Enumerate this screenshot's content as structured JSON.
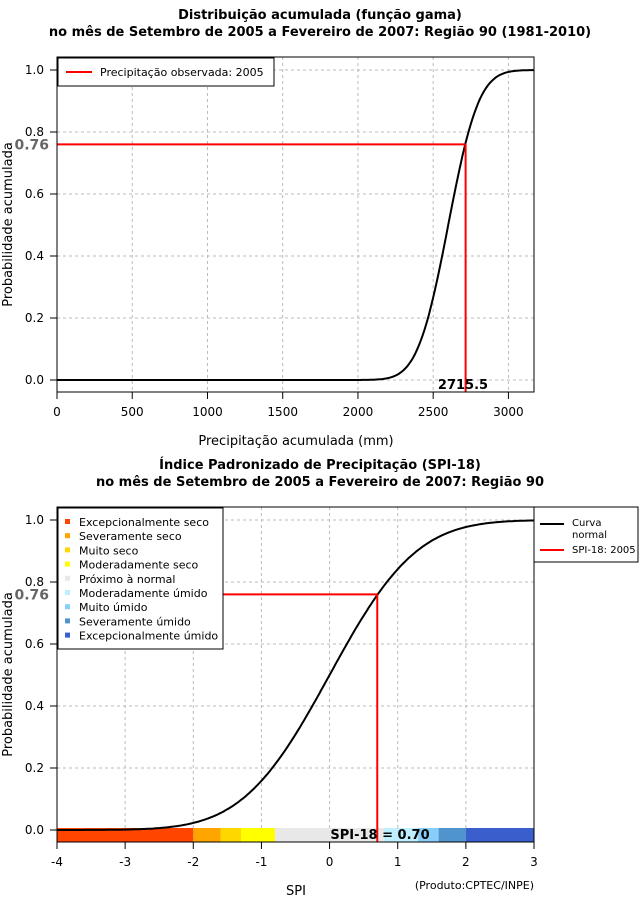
{
  "chart_data": [
    {
      "type": "line",
      "title": "Distribuição acumulada (função gama)",
      "subtitle": "no mês de Setembro de 2005 a Fevereiro de 2007: Região 90 (1981-2010)",
      "xlabel": "Precipitação acumulada (mm)",
      "ylabel": "Probabilidade acumulada",
      "xlim": [
        0,
        3170
      ],
      "ylim": [
        0,
        1
      ],
      "xticks": [
        "0",
        "500",
        "1000",
        "1500",
        "2000",
        "2500",
        "3000"
      ],
      "yticks": [
        "0.0",
        "0.2",
        "0.4",
        "0.6",
        "0.8",
        "1.0"
      ],
      "grid": true,
      "legend": {
        "position": "top-left",
        "entries": [
          "Precipitação observada: 2005"
        ]
      },
      "curve": {
        "distribution": "gamma-like",
        "median": 2600,
        "spread": 160
      },
      "marker": {
        "x": 2715.5,
        "y": 0.76,
        "x_label": "2715.5",
        "y_label": "0.76"
      },
      "colors": {
        "curve": "#000000",
        "marker": "#ff0000"
      }
    },
    {
      "type": "line",
      "title": "Índice Padronizado de Precipitação (SPI-18)",
      "subtitle": "no mês de Setembro de 2005 a Fevereiro de 2007: Região 90",
      "xlabel": "SPI",
      "ylabel": "Probabilidade acumulada",
      "xlim": [
        -4,
        3
      ],
      "ylim": [
        0,
        1
      ],
      "xticks": [
        "-4",
        "-3",
        "-2",
        "-1",
        "0",
        "1",
        "2",
        "3"
      ],
      "yticks": [
        "0.0",
        "0.2",
        "0.4",
        "0.6",
        "0.8",
        "1.0"
      ],
      "grid": true,
      "legend": {
        "position": "top-right",
        "entries": [
          "Curva normal",
          "SPI-18: 2005"
        ]
      },
      "categories": [
        {
          "label": "Excepcionalmente seco",
          "range": [
            -4,
            -2
          ],
          "color": "#ff4500"
        },
        {
          "label": "Severamente seco",
          "range": [
            -2,
            -1.6
          ],
          "color": "#ffa500"
        },
        {
          "label": "Muito seco",
          "range": [
            -1.6,
            -1.3
          ],
          "color": "#ffd700"
        },
        {
          "label": "Moderadamente seco",
          "range": [
            -1.3,
            -0.8
          ],
          "color": "#ffff00"
        },
        {
          "label": "Próximo à normal",
          "range": [
            -0.8,
            0.8
          ],
          "color": "#e8e8e8"
        },
        {
          "label": "Moderadamente úmido",
          "range": [
            0.8,
            1.3
          ],
          "color": "#bfefff"
        },
        {
          "label": "Muito úmido",
          "range": [
            1.3,
            1.6
          ],
          "color": "#87cefa"
        },
        {
          "label": "Severamente úmido",
          "range": [
            1.6,
            2
          ],
          "color": "#4f94cd"
        },
        {
          "label": "Excepcionalmente úmido",
          "range": [
            2,
            3
          ],
          "color": "#3a5fcd"
        }
      ],
      "marker": {
        "x": 0.7,
        "y": 0.76,
        "x_label": "SPI-18 = 0.70",
        "y_label": "0.76"
      },
      "credit": "(Produto:CPTEC/INPE)"
    }
  ]
}
